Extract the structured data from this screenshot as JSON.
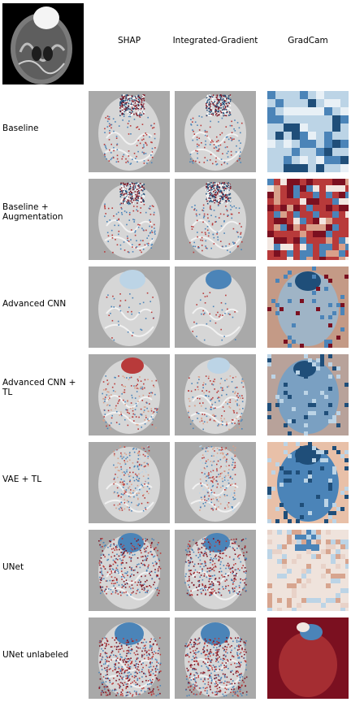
{
  "columns": [
    "SHAP",
    "Integrated-Gradient",
    "GradCam"
  ],
  "rows": [
    {
      "label": "Baseline"
    },
    {
      "label": "Baseline +\n Augmentation"
    },
    {
      "label": "Advanced CNN"
    },
    {
      "label": "Advanced CNN +\n TL"
    },
    {
      "label": "VAE + TL"
    },
    {
      "label": "UNet"
    },
    {
      "label": "UNet unlabeled"
    }
  ],
  "colors": {
    "gray_bg": "#a9a9a9",
    "blue_dark": "#1f4e79",
    "blue_mid": "#4b84b8",
    "blue_light": "#bcd4e6",
    "red_dark": "#7b1020",
    "red_mid": "#b83a3a",
    "salmon": "#d9a08a",
    "peach": "#e8c0a8"
  },
  "gradcam_styles": [
    "blue-blocks",
    "red-blocks",
    "tan-brain",
    "muted-brain",
    "peach-blue",
    "pixel-light",
    "red-wash"
  ]
}
